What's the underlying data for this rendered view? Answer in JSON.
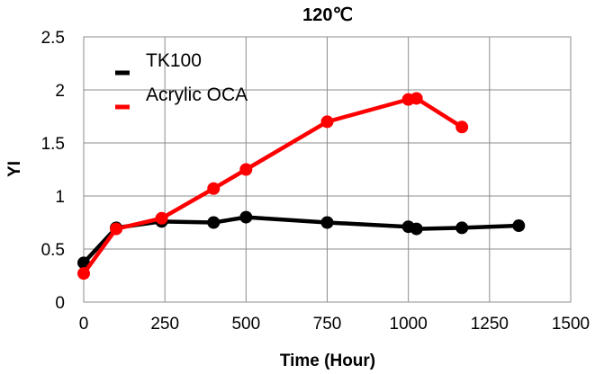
{
  "chart_data": {
    "type": "line",
    "title": "120℃",
    "xlabel": "Time (Hour)",
    "ylabel": "YI",
    "xlim": [
      0,
      1500
    ],
    "ylim": [
      0,
      2.5
    ],
    "xticks": [
      0,
      250,
      500,
      750,
      1000,
      1250,
      1500
    ],
    "yticks": [
      0,
      0.5,
      1,
      1.5,
      2,
      2.5
    ],
    "xtick_labels": [
      "0",
      "250",
      "500",
      "750",
      "1000",
      "1250",
      "1500"
    ],
    "ytick_labels": [
      "0",
      "0.5",
      "1",
      "1.5",
      "2",
      "2.5"
    ],
    "grid": true,
    "legend_position": "top-left",
    "series": [
      {
        "name": "TK100",
        "color": "#000000",
        "x": [
          0,
          100,
          240,
          400,
          500,
          750,
          1000,
          1025,
          1165,
          1340
        ],
        "y": [
          0.37,
          0.7,
          0.76,
          0.75,
          0.8,
          0.75,
          0.71,
          0.69,
          0.7,
          0.72
        ]
      },
      {
        "name": "Acrylic OCA",
        "color": "#ff0000",
        "x": [
          0,
          100,
          240,
          400,
          500,
          750,
          1000,
          1025,
          1165
        ],
        "y": [
          0.27,
          0.69,
          0.79,
          1.07,
          1.25,
          1.7,
          1.91,
          1.92,
          1.65
        ]
      }
    ]
  }
}
